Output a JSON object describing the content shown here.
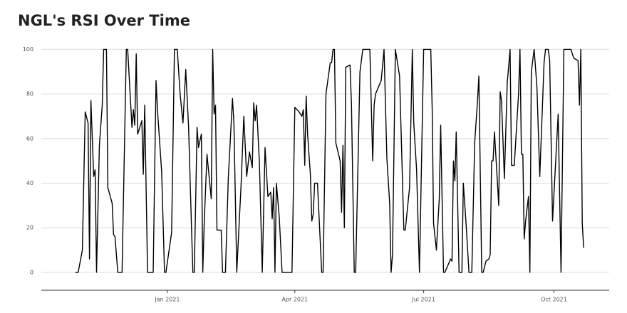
{
  "chart_data": {
    "type": "line",
    "title": "NGL's RSI Over Time",
    "x": [
      -65,
      -63,
      -60,
      -58,
      -56,
      -55,
      -54,
      -52,
      -51,
      -50,
      -48,
      -46,
      -45,
      -43,
      -42,
      -39,
      -38,
      -37,
      -35,
      -32,
      -29,
      -28,
      -25,
      -24,
      -23,
      -22,
      -21,
      -18,
      -17,
      -16,
      -14,
      -10,
      -8,
      -7,
      -4,
      -2,
      -1,
      3,
      5,
      7,
      9,
      11,
      13,
      15,
      17,
      18,
      19,
      21,
      22,
      24,
      25,
      26,
      28,
      31,
      32,
      33,
      34,
      35,
      38,
      39,
      41,
      43,
      46,
      47,
      49,
      51,
      52,
      54,
      56,
      58,
      60,
      61,
      62,
      63,
      65,
      67,
      69,
      71,
      73,
      74,
      75,
      76,
      77,
      79,
      81,
      83,
      88,
      90,
      93,
      95,
      96,
      97,
      98,
      99,
      101,
      102,
      103,
      104,
      106,
      109,
      110,
      112,
      115,
      116,
      117,
      118,
      119,
      122,
      123,
      124,
      125,
      126,
      129,
      130,
      132,
      133,
      136,
      138,
      143,
      145,
      146,
      147,
      149,
      151,
      153,
      155,
      157,
      158,
      159,
      161,
      164,
      167,
      168,
      171,
      173,
      174,
      176,
      178,
      181,
      186,
      187,
      188,
      190,
      192,
      193,
      195,
      196,
      200,
      201,
      202,
      203,
      204,
      206,
      208,
      209,
      211,
      213,
      215,
      217,
      219,
      220,
      222,
      223,
      225,
      227,
      228,
      229,
      230,
      231,
      233,
      234,
      235,
      236,
      238,
      240,
      242,
      243,
      245,
      248,
      249,
      250,
      251,
      252,
      253,
      255,
      256,
      257,
      259,
      261,
      263,
      266,
      267,
      269,
      270,
      272,
      276,
      278,
      280,
      285,
      287,
      290,
      291,
      292,
      293,
      294
    ],
    "series": [
      {
        "color": "#000000",
        "values": [
          0,
          0,
          10,
          72,
          67,
          6,
          77,
          43,
          46,
          0,
          57,
          75,
          100,
          100,
          38,
          31,
          17,
          16,
          0,
          0,
          100,
          100,
          65,
          73,
          66,
          98,
          62,
          68,
          44,
          75,
          0,
          0,
          86,
          73,
          45,
          0,
          0,
          18,
          100,
          100,
          80,
          67,
          91,
          65,
          21,
          0,
          0,
          65,
          56,
          62,
          0,
          22,
          53,
          33,
          100,
          71,
          75,
          19,
          19,
          0,
          0,
          42,
          78,
          67,
          0,
          26,
          38,
          70,
          43,
          54,
          47,
          76,
          68,
          75,
          49,
          0,
          56,
          34,
          36,
          24,
          38,
          0,
          40,
          25,
          0,
          0,
          0,
          74,
          72,
          70,
          73,
          48,
          79,
          62,
          44,
          23,
          26,
          40,
          40,
          0,
          0,
          80,
          94,
          94,
          100,
          100,
          58,
          50,
          27,
          57,
          20,
          92,
          93,
          75,
          0,
          0,
          90,
          100,
          100,
          50,
          75,
          80,
          83,
          86,
          100,
          51,
          31,
          0,
          8,
          100,
          88,
          19,
          19,
          38,
          100,
          67,
          46,
          0,
          100,
          100,
          73,
          22,
          10,
          33,
          66,
          0,
          0,
          6,
          5,
          50,
          41,
          63,
          0,
          0,
          40,
          21,
          0,
          0,
          58,
          77,
          88,
          0,
          0,
          5,
          6,
          8,
          50,
          50,
          63,
          41,
          30,
          81,
          77,
          42,
          85,
          100,
          48,
          48,
          80,
          100,
          53,
          53,
          15,
          23,
          34,
          0,
          90,
          100,
          83,
          43,
          94,
          100,
          100,
          95,
          23,
          71,
          0,
          100,
          100,
          96,
          95,
          75,
          100,
          22,
          11
        ]
      }
    ],
    "xlim": [
      -89,
      312
    ],
    "xticks": [
      {
        "value": 0,
        "label": "Jan 2021"
      },
      {
        "value": 90,
        "label": "Apr 2021"
      },
      {
        "value": 181,
        "label": "Jul 2021"
      },
      {
        "value": 273,
        "label": "Oct 2021"
      }
    ],
    "ylim": [
      -8,
      103
    ],
    "yticks": [
      0,
      20,
      40,
      60,
      80,
      100
    ],
    "grid": true
  }
}
